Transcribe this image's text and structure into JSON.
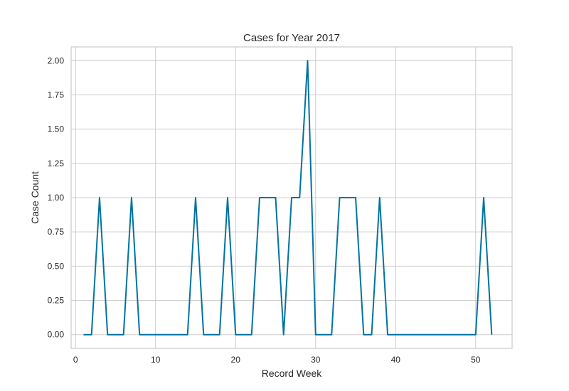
{
  "chart_data": {
    "type": "line",
    "title": "Cases for Year 2017",
    "xlabel": "Record Week",
    "ylabel": "Case Count",
    "xlim": [
      -0.55,
      54.55
    ],
    "ylim": [
      -0.1,
      2.1
    ],
    "xticks": [
      0,
      10,
      20,
      30,
      40,
      50
    ],
    "yticks": [
      0.0,
      0.25,
      0.5,
      0.75,
      1.0,
      1.25,
      1.5,
      1.75,
      2.0
    ],
    "xtick_labels": [
      "0",
      "10",
      "20",
      "30",
      "40",
      "50"
    ],
    "ytick_labels": [
      "0.00",
      "0.25",
      "0.50",
      "0.75",
      "1.00",
      "1.25",
      "1.50",
      "1.75",
      "2.00"
    ],
    "grid": true,
    "line_color": "#0072a2",
    "series": [
      {
        "x": [
          1,
          2,
          3,
          4,
          5,
          6,
          7,
          8,
          9,
          10,
          11,
          12,
          13,
          14,
          15,
          16,
          17,
          18,
          19,
          20,
          21,
          22,
          23,
          24,
          25,
          26,
          27,
          28,
          29,
          30,
          31,
          32,
          33,
          34,
          35,
          36,
          37,
          38,
          39,
          40,
          41,
          42,
          43,
          44,
          45,
          46,
          47,
          48,
          49,
          50,
          51,
          52
        ],
        "y": [
          0,
          0,
          1,
          0,
          0,
          0,
          1,
          0,
          0,
          0,
          0,
          0,
          0,
          0,
          1,
          0,
          0,
          0,
          1,
          0,
          0,
          0,
          1,
          1,
          1,
          0,
          1,
          1,
          2,
          0,
          0,
          0,
          1,
          1,
          1,
          0,
          0,
          1,
          0,
          0,
          0,
          0,
          0,
          0,
          0,
          0,
          0,
          0,
          0,
          0,
          1,
          0
        ]
      }
    ]
  }
}
